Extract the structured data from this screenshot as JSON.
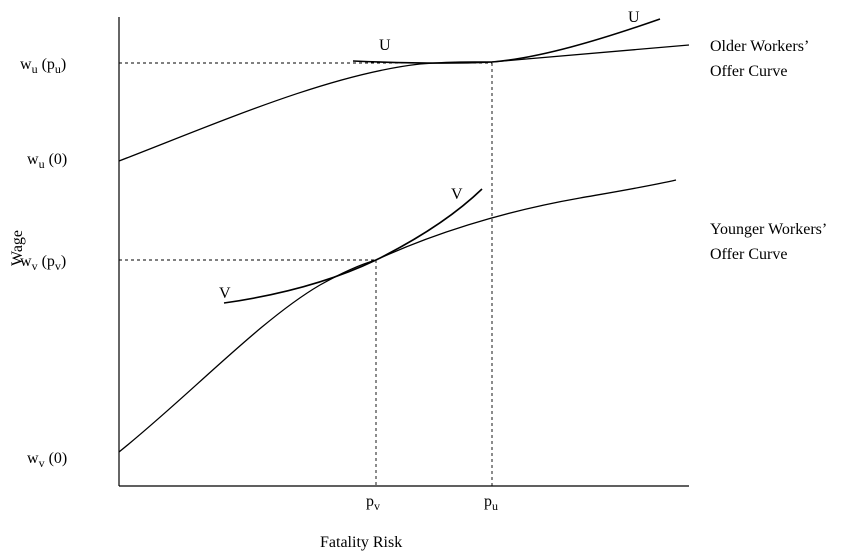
{
  "axes": {
    "y_label": "Wage",
    "x_label": "Fatality Risk"
  },
  "y_ticks": [
    {
      "base": "w",
      "sub": "u",
      "arg_base": "p",
      "arg_sub": "u",
      "arg": ""
    },
    {
      "base": "w",
      "sub": "u",
      "arg_base": "",
      "arg_sub": "",
      "arg": "0"
    },
    {
      "base": "w",
      "sub": "v",
      "arg_base": "p",
      "arg_sub": "v",
      "arg": ""
    },
    {
      "base": "w",
      "sub": "v",
      "arg_base": "",
      "arg_sub": "",
      "arg": "0"
    }
  ],
  "x_ticks": [
    {
      "base": "p",
      "sub": "v"
    },
    {
      "base": "p",
      "sub": "u"
    }
  ],
  "curves": {
    "older_offer": {
      "label_line1": "Older Workers’",
      "label_line2": "Offer Curve"
    },
    "younger_offer": {
      "label_line1": "Younger Workers’",
      "label_line2": "Offer Curve"
    },
    "indiff_u": {
      "label_left": "U",
      "label_right": "U"
    },
    "indiff_v": {
      "label_left": "V",
      "label_right": "V"
    }
  }
}
